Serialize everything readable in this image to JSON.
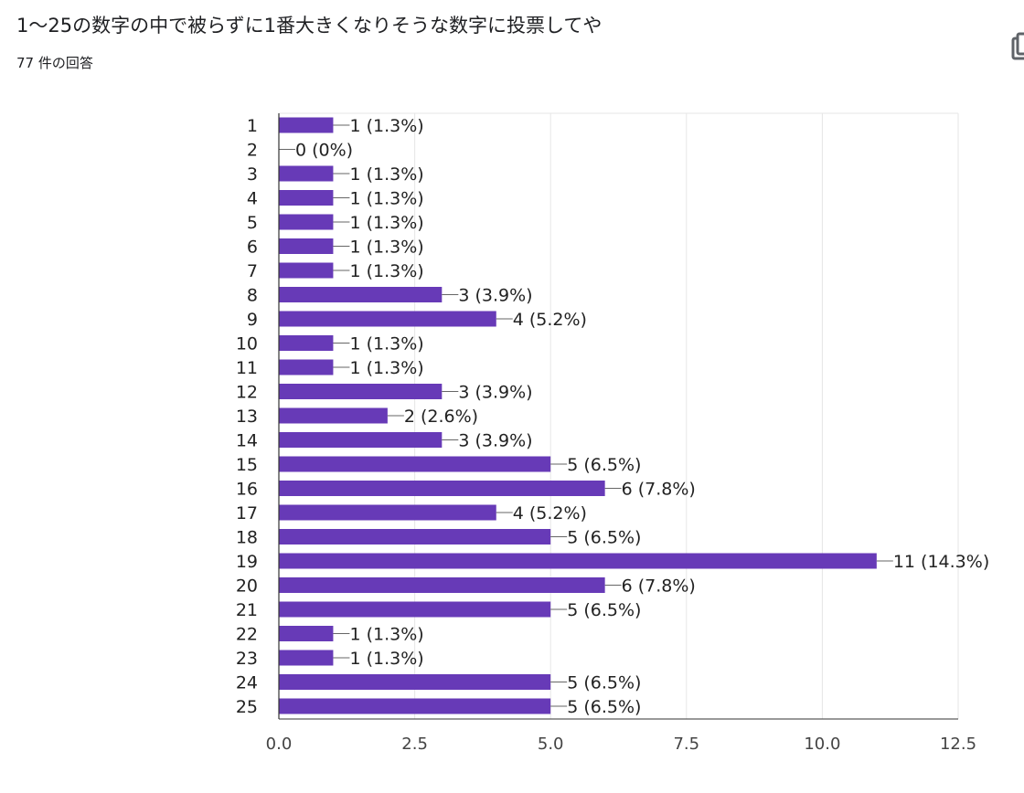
{
  "header": {
    "title": "1〜25の数字の中で被らずに1番大きくなりそうな数字に投票してや",
    "response_count": "77 件の回答"
  },
  "colors": {
    "bar": "#673ab7",
    "grid": "#e6e6e6",
    "axis": "#333333",
    "text": "#202124"
  },
  "icons": {
    "copy": "copy-icon"
  },
  "chart_data": {
    "type": "bar",
    "orientation": "horizontal",
    "title": "",
    "xlabel": "",
    "ylabel": "",
    "xlim": [
      0,
      12.5
    ],
    "xticks": [
      "0.0",
      "2.5",
      "5.0",
      "7.5",
      "10.0",
      "12.5"
    ],
    "grid": true,
    "categories": [
      "1",
      "2",
      "3",
      "4",
      "5",
      "6",
      "7",
      "8",
      "9",
      "10",
      "11",
      "12",
      "13",
      "14",
      "15",
      "16",
      "17",
      "18",
      "19",
      "20",
      "21",
      "22",
      "23",
      "24",
      "25"
    ],
    "values": [
      1,
      0,
      1,
      1,
      1,
      1,
      1,
      3,
      4,
      1,
      1,
      3,
      2,
      3,
      5,
      6,
      4,
      5,
      11,
      6,
      5,
      1,
      1,
      5,
      5
    ],
    "labels": [
      "1 (1.3%)",
      "0 (0%)",
      "1 (1.3%)",
      "1 (1.3%)",
      "1 (1.3%)",
      "1 (1.3%)",
      "1 (1.3%)",
      "3 (3.9%)",
      "4 (5.2%)",
      "1 (1.3%)",
      "1 (1.3%)",
      "3 (3.9%)",
      "2 (2.6%)",
      "3 (3.9%)",
      "5 (6.5%)",
      "6 (7.8%)",
      "4 (5.2%)",
      "5 (6.5%)",
      "11 (14.3%)",
      "6 (7.8%)",
      "5 (6.5%)",
      "1 (1.3%)",
      "1 (1.3%)",
      "5 (6.5%)",
      "5 (6.5%)"
    ]
  }
}
